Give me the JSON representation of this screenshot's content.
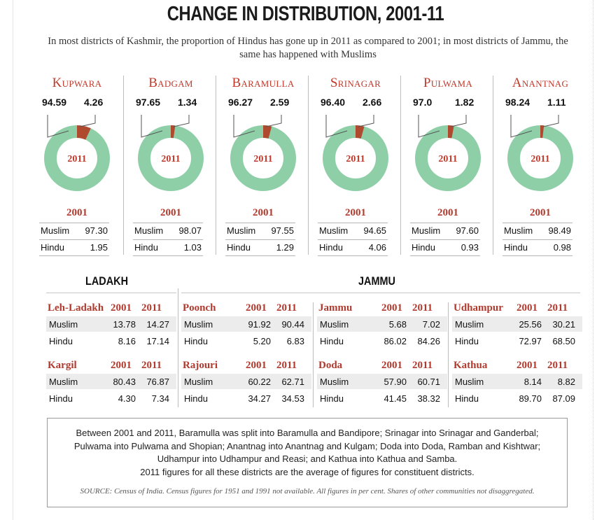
{
  "title": "CHANGE IN DISTRIBUTION, 2001-11",
  "subtitle": "In most districts of Kashmir, the proportion of Hindus has gone up in 2011 as compared to 2001; in most districts of Jammu, the same has happened with Muslims",
  "colors": {
    "muslim": "#8ecfa8",
    "hindu": "#b04a2e",
    "accent": "#c0392b"
  },
  "donut_center_label": "2011",
  "year_2001_label": "2001",
  "muslim_label": "Muslim",
  "hindu_label": "Hindu",
  "chart_data": {
    "type": "pie",
    "kashmir_districts": [
      {
        "name": "Kupwara",
        "muslim_2011": "94.59",
        "hindu_2011": "4.26",
        "muslim_2001": "97.30",
        "hindu_2001": "1.95"
      },
      {
        "name": "Badgam",
        "muslim_2011": "97.65",
        "hindu_2011": "1.34",
        "muslim_2001": "98.07",
        "hindu_2001": "1.03"
      },
      {
        "name": "Baramulla",
        "muslim_2011": "96.27",
        "hindu_2011": "2.59",
        "muslim_2001": "97.55",
        "hindu_2001": "1.29"
      },
      {
        "name": "Srinagar",
        "muslim_2011": "96.40",
        "hindu_2011": "2.66",
        "muslim_2001": "94.65",
        "hindu_2001": "4.06"
      },
      {
        "name": "Pulwama",
        "muslim_2011": "97.0",
        "hindu_2011": "1.82",
        "muslim_2001": "97.60",
        "hindu_2001": "0.93"
      },
      {
        "name": "Anantnag",
        "muslim_2011": "98.24",
        "hindu_2011": "1.11",
        "muslim_2001": "98.49",
        "hindu_2001": "0.98"
      }
    ]
  },
  "ladakh": {
    "heading": "LADAKH",
    "tables": [
      {
        "name": "Leh-Ladakh",
        "y1": "2001",
        "y2": "2011",
        "muslim": [
          "13.78",
          "14.27"
        ],
        "hindu": [
          "8.16",
          "17.14"
        ]
      },
      {
        "name": "Kargil",
        "y1": "2001",
        "y2": "2011",
        "muslim": [
          "80.43",
          "76.87"
        ],
        "hindu": [
          "4.30",
          "7.34"
        ]
      }
    ]
  },
  "jammu": {
    "heading": "JAMMU",
    "tables": [
      {
        "name": "Poonch",
        "y1": "2001",
        "y2": "2011",
        "muslim": [
          "91.92",
          "90.44"
        ],
        "hindu": [
          "5.20",
          "6.83"
        ]
      },
      {
        "name": "Jammu",
        "y1": "2001",
        "y2": "2011",
        "muslim": [
          "5.68",
          "7.02"
        ],
        "hindu": [
          "86.02",
          "84.26"
        ]
      },
      {
        "name": "Udhampur",
        "y1": "2001",
        "y2": "2011",
        "muslim": [
          "25.56",
          "30.21"
        ],
        "hindu": [
          "72.97",
          "68.50"
        ]
      },
      {
        "name": "Rajouri",
        "y1": "2001",
        "y2": "2011",
        "muslim": [
          "60.22",
          "62.71"
        ],
        "hindu": [
          "34.27",
          "34.53"
        ]
      },
      {
        "name": "Doda",
        "y1": "2001",
        "y2": "2011",
        "muslim": [
          "57.90",
          "60.71"
        ],
        "hindu": [
          "41.45",
          "38.32"
        ]
      },
      {
        "name": "Kathua",
        "y1": "2001",
        "y2": "2011",
        "muslim": [
          "8.14",
          "8.82"
        ],
        "hindu": [
          "89.70",
          "87.09"
        ]
      }
    ]
  },
  "note": {
    "lines": [
      "Between 2001 and 2011, Baramulla was split into Baramulla and Bandipore; Srinagar into Srinagar and Ganderbal;",
      "Pulwama into Pulwama and Shopian; Anantnag into Anantnag and Kulgam; Doda into Doda, Ramban and Kishtwar;",
      "Udhampur into Udhampur and Reasi; and Kathua into Kathua and Samba.",
      "2011 figures for all these districts are the average of figures for constituent districts."
    ],
    "source": "SOURCE: Census of India. Census figures for 1951 and 1991 not available. All figures in per cent. Shares of other communities not disaggregated."
  }
}
